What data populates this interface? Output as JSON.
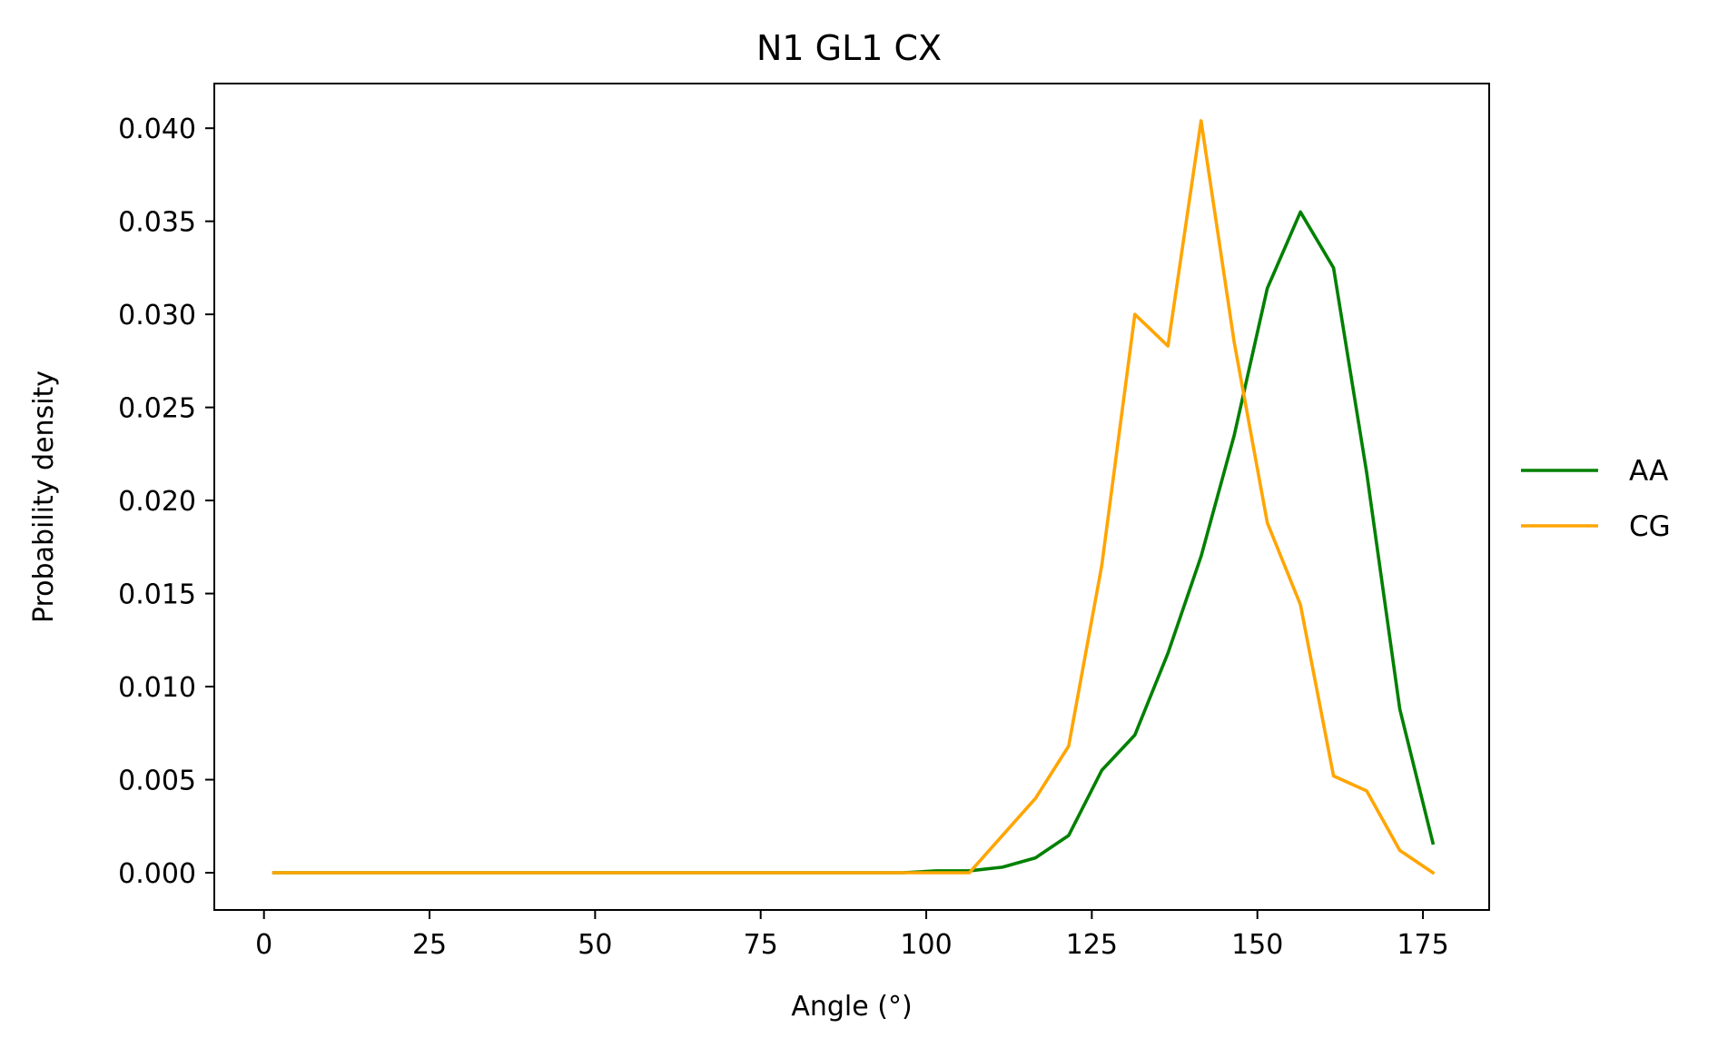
{
  "chart_data": {
    "type": "line",
    "title": "N1 GL1 CX",
    "xlabel": "Angle (°)",
    "ylabel": "Probability density",
    "xlim": [
      -7.5,
      185
    ],
    "ylim": [
      -0.002,
      0.0424
    ],
    "xticks": [
      0,
      25,
      50,
      75,
      100,
      125,
      150,
      175
    ],
    "xtick_labels": [
      "0",
      "25",
      "50",
      "75",
      "100",
      "125",
      "150",
      "175"
    ],
    "yticks": [
      0.0,
      0.005,
      0.01,
      0.015,
      0.02,
      0.025,
      0.03,
      0.035,
      0.04
    ],
    "ytick_labels": [
      "0.000",
      "0.005",
      "0.010",
      "0.015",
      "0.020",
      "0.025",
      "0.030",
      "0.035",
      "0.040"
    ],
    "grid": false,
    "legend_position": "outside-right",
    "x": [
      1.5,
      6.5,
      11.5,
      16.5,
      21.5,
      26.5,
      31.5,
      36.5,
      41.5,
      46.5,
      51.5,
      56.5,
      61.5,
      66.5,
      71.5,
      76.5,
      81.5,
      86.5,
      91.5,
      96.5,
      101.5,
      106.5,
      111.5,
      116.5,
      121.5,
      126.5,
      131.5,
      136.5,
      141.5,
      146.5,
      151.5,
      156.5,
      161.5,
      166.5,
      171.5,
      176.5
    ],
    "series": [
      {
        "name": "AA",
        "color": "#008000",
        "values": [
          0,
          0,
          0,
          0,
          0,
          0,
          0,
          0,
          0,
          0,
          0,
          0,
          0,
          0,
          0,
          0,
          0,
          0,
          0,
          0,
          0.0001,
          0.0001,
          0.0003,
          0.0008,
          0.002,
          0.0055,
          0.0074,
          0.0118,
          0.017,
          0.0235,
          0.0314,
          0.0355,
          0.0325,
          0.0215,
          0.0088,
          0.0016
        ]
      },
      {
        "name": "CG",
        "color": "#FFA500",
        "values": [
          0,
          0,
          0,
          0,
          0,
          0,
          0,
          0,
          0,
          0,
          0,
          0,
          0,
          0,
          0,
          0,
          0,
          0,
          0,
          0,
          0,
          0,
          0.002,
          0.004,
          0.0068,
          0.0165,
          0.03,
          0.0283,
          0.0404,
          0.0285,
          0.0188,
          0.0144,
          0.0052,
          0.0044,
          0.0012,
          0
        ]
      }
    ]
  }
}
